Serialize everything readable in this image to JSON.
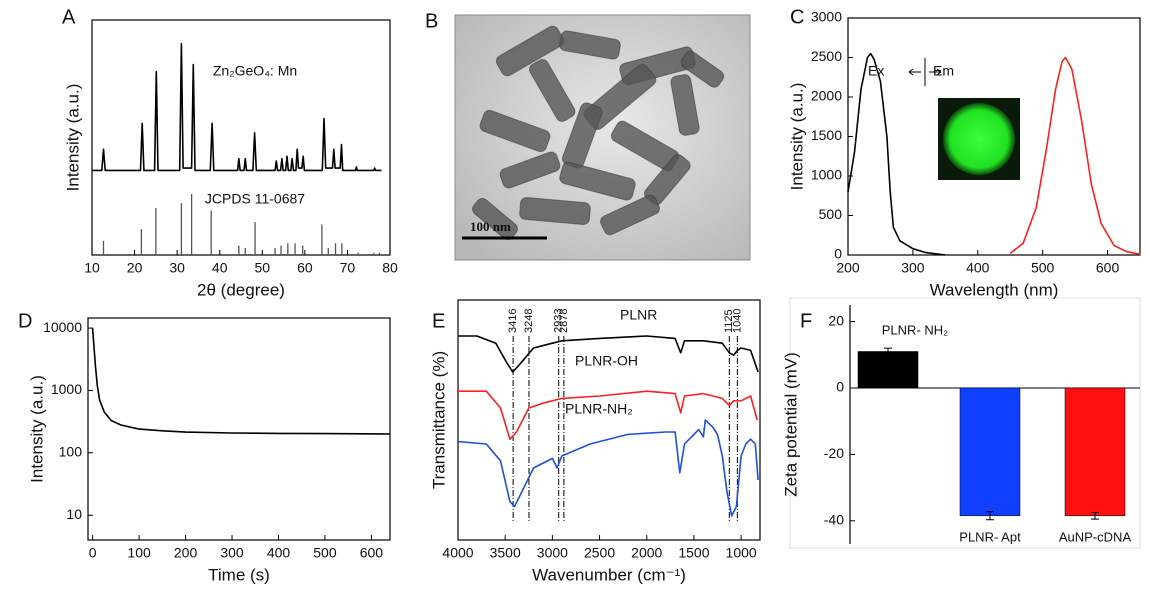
{
  "chart_data": [
    {
      "type": "line",
      "panel_label": "A",
      "x_label": "2θ (degree)",
      "y_label": "Intensity (a.u.)",
      "xlim": [
        10,
        80
      ],
      "xticks": [
        10,
        20,
        30,
        40,
        50,
        60,
        70,
        80
      ],
      "ylim": [
        0,
        100
      ],
      "annotations": [
        "Zn₂GeO₄: Mn",
        "JCPDS 11-0687"
      ],
      "series": [
        {
          "style": "line",
          "color": "#000000",
          "x": [
            10,
            12.3,
            12.7,
            13.1,
            21.4,
            21.8,
            22.2,
            24.7,
            25.1,
            25.5,
            30.6,
            31.0,
            31.4,
            33.4,
            33.8,
            34.2,
            37.8,
            38.2,
            38.6,
            44.2,
            44.5,
            44.8,
            45.7,
            46,
            46.3,
            47.8,
            48.2,
            48.6,
            53,
            53.3,
            53.6,
            54.3,
            54.6,
            54.9,
            55.5,
            55.8,
            56.1,
            56.7,
            57,
            57.3,
            57.9,
            58.2,
            58.5,
            59.3,
            59.6,
            59.9,
            64.1,
            64.5,
            64.9,
            66.5,
            66.8,
            67.1,
            68.3,
            68.6,
            68.9,
            71.9,
            72.1,
            72.3,
            76.2,
            76.4,
            76.6,
            78
          ],
          "values": [
            36,
            36,
            45,
            36,
            36,
            56,
            36,
            36,
            78,
            36,
            36,
            90,
            37,
            37,
            81,
            36,
            36,
            56,
            36,
            36,
            41,
            36,
            36,
            41,
            36,
            36,
            52,
            36,
            36,
            40,
            36,
            36,
            41,
            36,
            36,
            42,
            36,
            36,
            41,
            36,
            36,
            45,
            37,
            37,
            42,
            36,
            36,
            58,
            37,
            37,
            45,
            37,
            37,
            47,
            36,
            36,
            37.5,
            36,
            36,
            37,
            36,
            36
          ]
        },
        {
          "style": "stick",
          "color": "#555555",
          "x": [
            12.7,
            21.6,
            25.0,
            31.0,
            33.4,
            38.0,
            44.5,
            46.0,
            48.3,
            53.0,
            54.4,
            56.0,
            57.7,
            59.5,
            64.0,
            65.5,
            67.2,
            68.7,
            72.5,
            76.2,
            77.5
          ],
          "values": [
            6,
            11,
            20,
            22,
            26,
            19,
            4,
            3,
            14,
            3,
            4,
            5,
            5,
            4,
            13,
            3,
            5,
            5,
            1,
            1,
            1
          ]
        }
      ]
    },
    {
      "type": "line",
      "panel_label": "C",
      "x_label": "Wavelength (nm)",
      "y_label": "Intensity (a.u.)",
      "xlim": [
        200,
        650
      ],
      "xticks": [
        200,
        300,
        400,
        500,
        600
      ],
      "ylim": [
        0,
        3000
      ],
      "yticks": [
        0,
        500,
        1000,
        1500,
        2000,
        2500,
        3000
      ],
      "series": [
        {
          "name": "Ex",
          "color": "#000000",
          "x": [
            200,
            210,
            220,
            230,
            235,
            240,
            250,
            260,
            265,
            270,
            280,
            300,
            320,
            350
          ],
          "values": [
            800,
            1300,
            2100,
            2500,
            2550,
            2480,
            2200,
            1500,
            800,
            350,
            180,
            80,
            30,
            0
          ]
        },
        {
          "name": "Em",
          "color": "#ff2020",
          "x": [
            450,
            470,
            490,
            505,
            520,
            530,
            535,
            545,
            560,
            575,
            590,
            610,
            630,
            650
          ],
          "values": [
            20,
            150,
            600,
            1300,
            2100,
            2450,
            2500,
            2350,
            1700,
            900,
            400,
            120,
            40,
            10
          ]
        }
      ]
    },
    {
      "type": "line",
      "panel_label": "D",
      "x_label": "Time (s)",
      "y_label": "Intensity (a.u.)",
      "log_y": true,
      "xlim": [
        -10,
        640
      ],
      "xticks": [
        0,
        100,
        200,
        300,
        400,
        500,
        600
      ],
      "ylim": [
        4,
        14500
      ],
      "yticks": [
        10,
        100,
        1000,
        10000
      ],
      "series": [
        {
          "color": "#000000",
          "x": [
            0,
            3,
            6,
            10,
            15,
            25,
            40,
            60,
            100,
            150,
            200,
            300,
            400,
            500,
            640
          ],
          "values": [
            10000,
            5000,
            2500,
            1200,
            700,
            450,
            330,
            280,
            240,
            225,
            215,
            208,
            205,
            203,
            200
          ]
        }
      ]
    },
    {
      "type": "line",
      "panel_label": "E",
      "x_label": "Wavenumber (cm⁻¹)",
      "y_label": "Transmittance (%)",
      "xlim": [
        4000,
        800
      ],
      "xticks": [
        4000,
        3500,
        3000,
        2500,
        2000,
        1500,
        1000
      ],
      "ylim": [
        0,
        100
      ],
      "marker_lines": [
        3416,
        3248,
        2933,
        2878,
        1125,
        1040
      ],
      "series": [
        {
          "name": "PLNR",
          "color": "#000000",
          "x": [
            4000,
            3800,
            3600,
            3500,
            3420,
            3350,
            3200,
            3000,
            2900,
            2500,
            2000,
            1700,
            1640,
            1600,
            1400,
            1200,
            1125,
            1080,
            1040,
            1000,
            900,
            820
          ],
          "values": [
            85,
            85,
            82,
            75,
            70,
            73,
            80,
            82,
            83,
            84,
            85,
            84,
            78,
            83,
            83,
            82,
            78,
            77,
            79,
            80,
            79,
            70
          ]
        },
        {
          "name": "PLNR-OH",
          "color": "#ff2020",
          "x": [
            4000,
            3700,
            3550,
            3450,
            3380,
            3250,
            3100,
            2900,
            2500,
            2000,
            1700,
            1640,
            1600,
            1400,
            1200,
            1125,
            1080,
            1000,
            900,
            830
          ],
          "values": [
            62,
            62,
            55,
            42,
            45,
            55,
            57,
            59,
            60,
            62,
            61,
            53,
            60,
            61,
            59,
            56,
            58,
            58,
            60,
            50
          ]
        },
        {
          "name": "PLNR-NH₂",
          "color": "#1f4fe0",
          "x": [
            4000,
            3700,
            3550,
            3450,
            3400,
            3300,
            3200,
            3000,
            2950,
            2900,
            2600,
            2200,
            1800,
            1700,
            1650,
            1600,
            1500,
            1450,
            1400,
            1380,
            1300,
            1250,
            1200,
            1150,
            1100,
            1050,
            1000,
            950,
            900,
            850,
            820
          ],
          "values": [
            41,
            40,
            33,
            16,
            14,
            22,
            30,
            34,
            30,
            35,
            40,
            44,
            45,
            45,
            28,
            40,
            44,
            46,
            43,
            50,
            47,
            44,
            35,
            20,
            10,
            14,
            35,
            40,
            42,
            40,
            25
          ]
        }
      ]
    },
    {
      "type": "bar",
      "panel_label": "F",
      "y_label": "Zeta potential (mV)",
      "ylim": [
        -47,
        25
      ],
      "yticks": [
        -40,
        -20,
        0,
        20
      ],
      "categories": [
        "PLNR- NH₂",
        "PLNR- Apt",
        "AuNP-cDNA"
      ],
      "values": [
        11,
        -38.5,
        -38.5
      ],
      "errors": [
        1,
        1.2,
        1
      ],
      "colors": [
        "#000000",
        "#1040ff",
        "#ff1010"
      ]
    }
  ],
  "image": {
    "panel_label": "B",
    "scale_bar": "100 nm"
  }
}
